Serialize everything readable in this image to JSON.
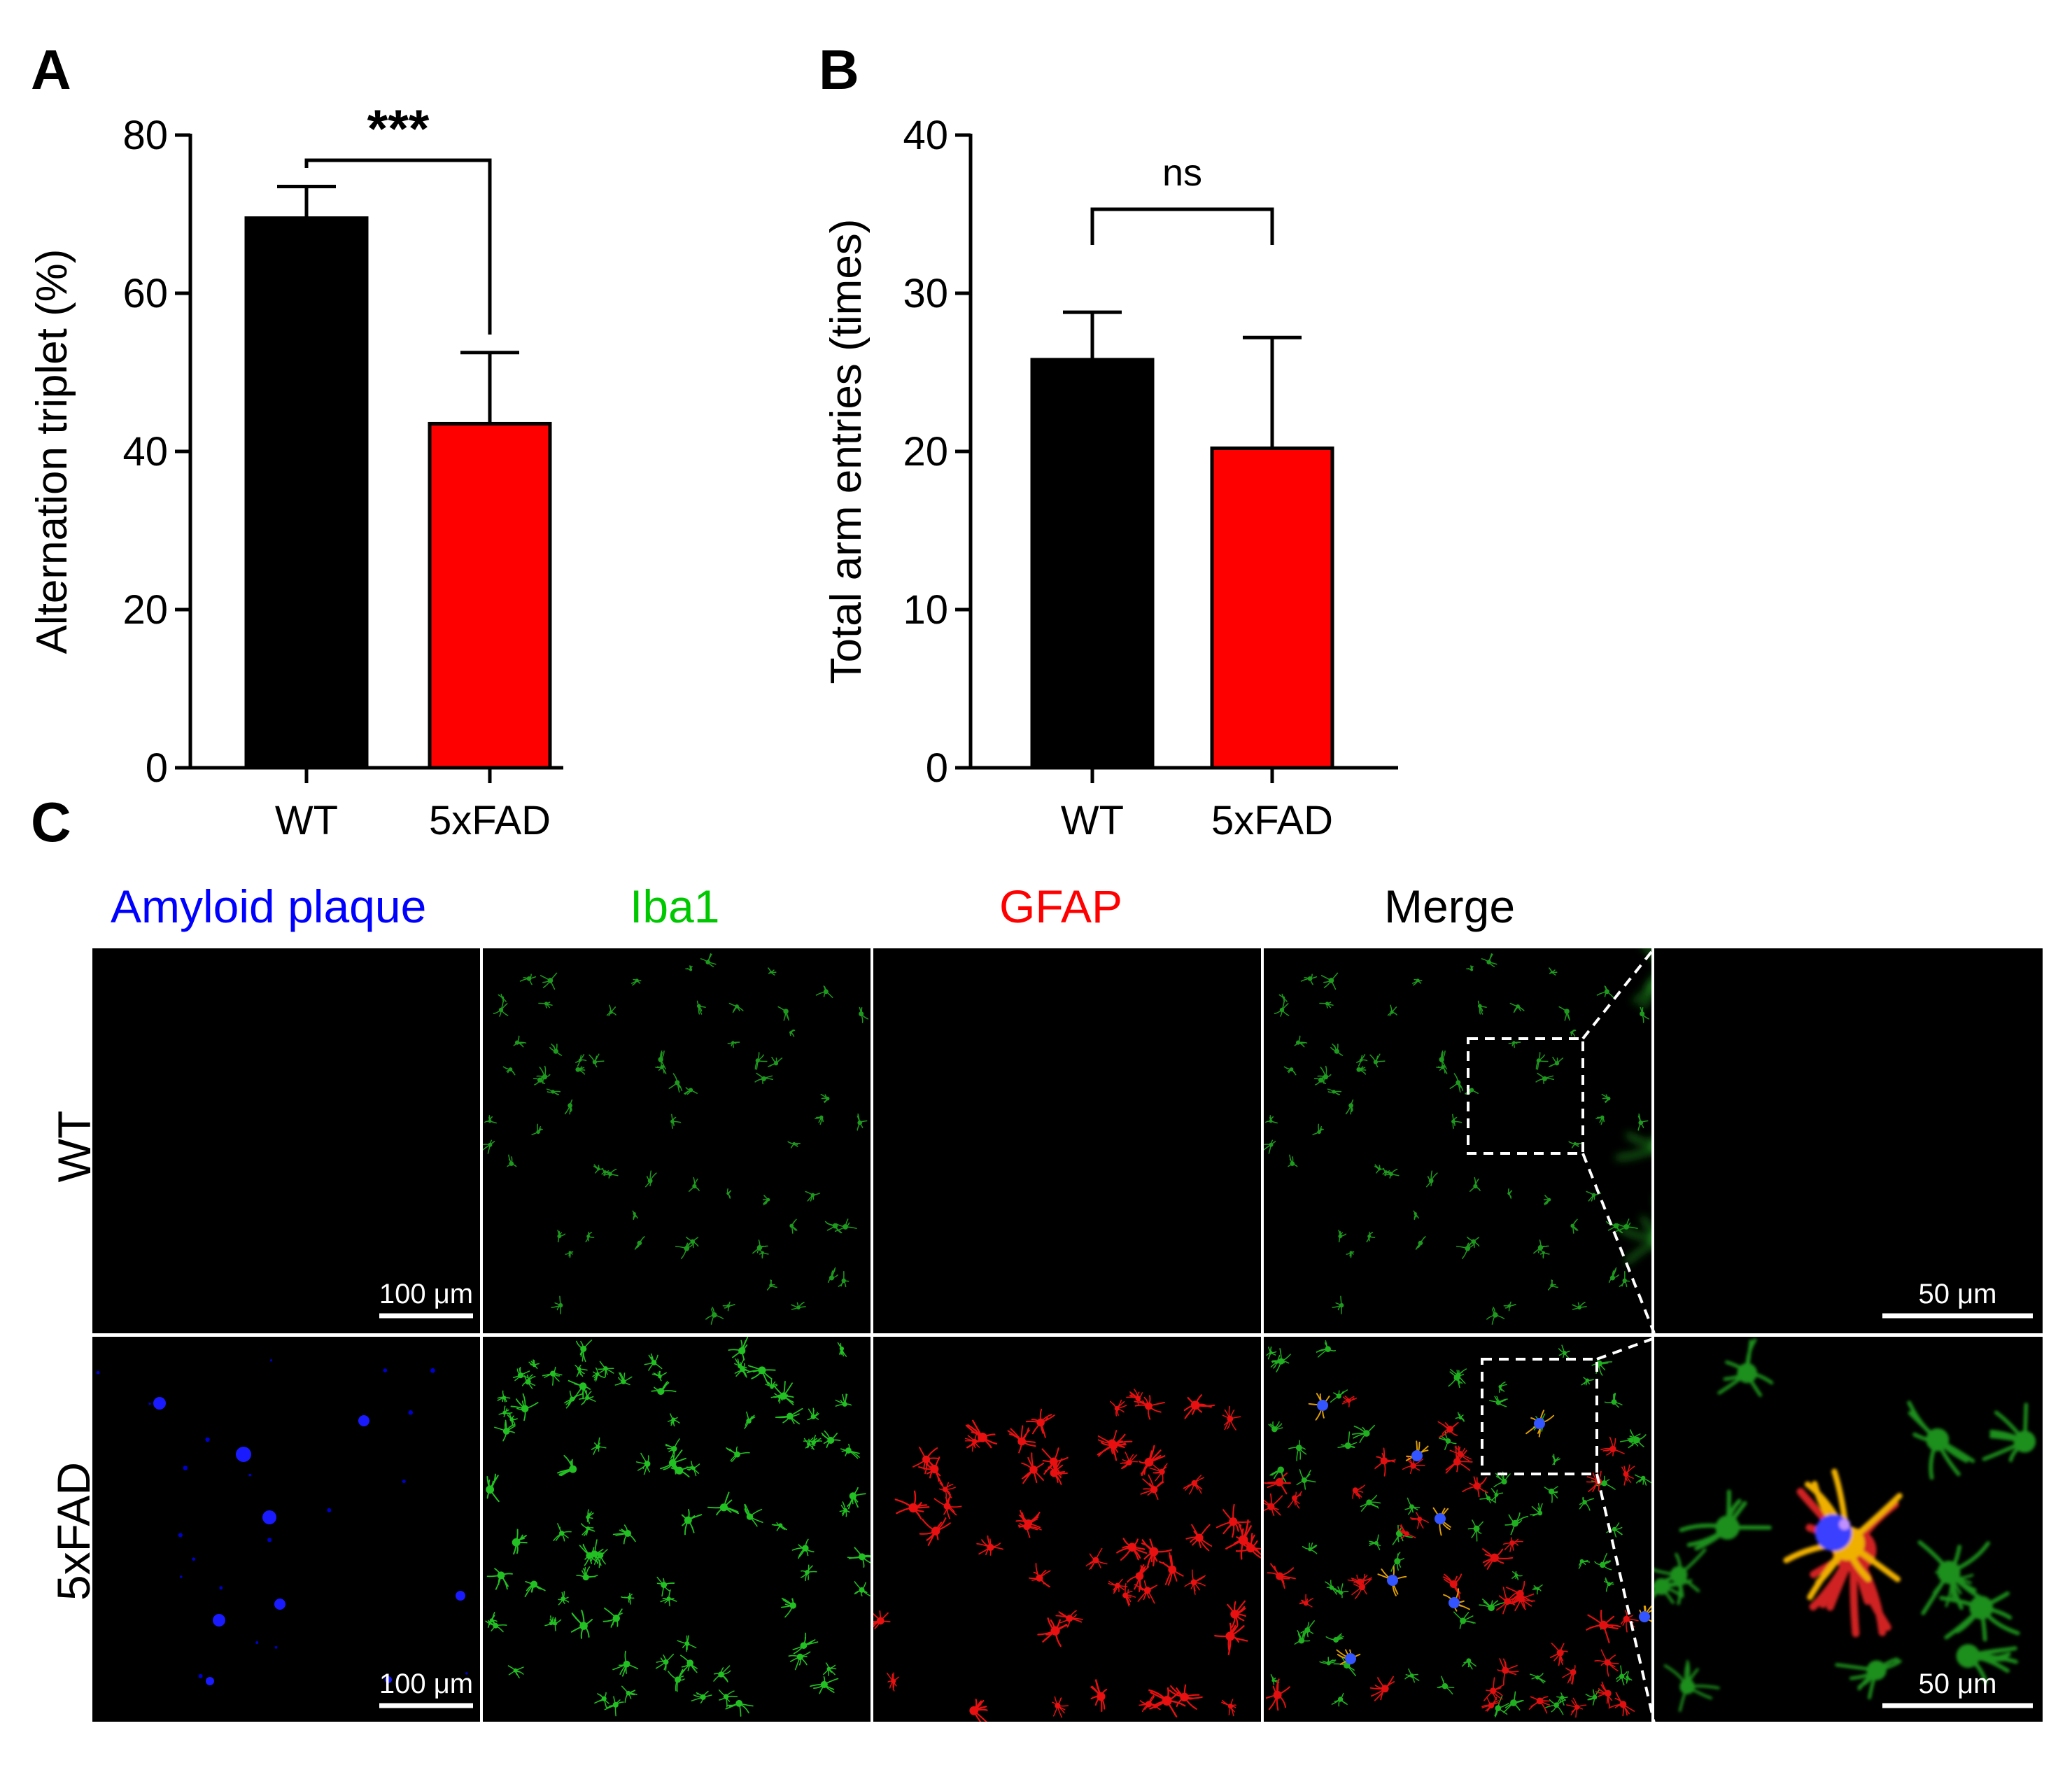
{
  "panels": {
    "a": "A",
    "b": "B",
    "c": "C"
  },
  "chart_data": [
    {
      "type": "bar",
      "panel": "A",
      "categories": [
        "WT",
        "5xFAD"
      ],
      "values": [
        69.5,
        43.5
      ],
      "errors": [
        4.0,
        9.0
      ],
      "colors": [
        "#000000",
        "#ff0000"
      ],
      "ylabel": "Alternation triplet (%)",
      "xlabel": "",
      "ylim": [
        0,
        80
      ],
      "yticks": [
        "0",
        "20",
        "40",
        "60",
        "80"
      ],
      "significance": "***",
      "grid": false
    },
    {
      "type": "bar",
      "panel": "B",
      "categories": [
        "WT",
        "5xFAD"
      ],
      "values": [
        25.8,
        20.2
      ],
      "errors": [
        3.0,
        7.0
      ],
      "colors": [
        "#000000",
        "#ff0000"
      ],
      "ylabel": "Total arm entries (times)",
      "xlabel": "",
      "ylim": [
        0,
        40
      ],
      "yticks": [
        "0",
        "10",
        "20",
        "30",
        "40"
      ],
      "significance": "ns",
      "grid": false
    }
  ],
  "micrographs": {
    "channels": [
      {
        "label": "Amyloid plaque",
        "color": "#0000ff"
      },
      {
        "label": "Iba1",
        "color": "#00c800"
      },
      {
        "label": "GFAP",
        "color": "#ff0000"
      },
      {
        "label": "Merge",
        "color": "#000000"
      }
    ],
    "rows": [
      "WT",
      "5xFAD"
    ],
    "scale_bars": {
      "main": "100 μm",
      "zoom": "50 μm"
    }
  }
}
